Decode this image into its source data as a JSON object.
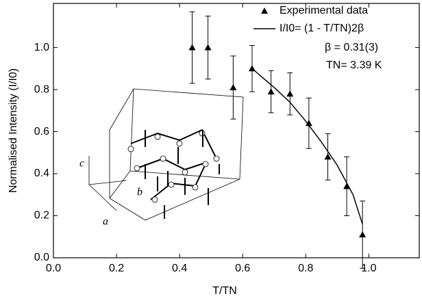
{
  "chart_data": {
    "type": "scatter",
    "xlabel": "T/TN",
    "ylabel": "Normalised Intensity (I/I0)",
    "xlim": [
      0,
      1.16
    ],
    "ylim": [
      0,
      1.21
    ],
    "xticks": [
      {
        "value": 0,
        "label": "0.0"
      },
      {
        "value": 0.2,
        "label": "0.2"
      },
      {
        "value": 0.4,
        "label": "0.4"
      },
      {
        "value": 0.6,
        "label": "0.6"
      },
      {
        "value": 0.8,
        "label": "0.8"
      },
      {
        "value": 1.0,
        "label": "1.0"
      }
    ],
    "yticks": [
      {
        "value": 0,
        "label": "0.0"
      },
      {
        "value": 0.2,
        "label": "0.2"
      },
      {
        "value": 0.4,
        "label": "0.4"
      },
      {
        "value": 0.6,
        "label": "0.6"
      },
      {
        "value": 0.8,
        "label": "0.8"
      },
      {
        "value": 1.0,
        "label": "1.0"
      }
    ],
    "grid": false,
    "legend": "upper right",
    "series": [
      {
        "name": "Experimental data",
        "color": "#000000",
        "marker": "triangle",
        "x": [
          0.44,
          0.49,
          0.57,
          0.63,
          0.69,
          0.75,
          0.81,
          0.87,
          0.93,
          0.98
        ],
        "values": [
          1.0,
          1.0,
          0.81,
          0.9,
          0.79,
          0.78,
          0.64,
          0.48,
          0.34,
          0.11
        ],
        "errors": [
          0.17,
          0.15,
          0.15,
          0.11,
          0.1,
          0.1,
          0.12,
          0.11,
          0.14,
          0.16
        ]
      },
      {
        "name": "I/I0= (1 - T/TN)2β",
        "color": "#000000",
        "marker": "line",
        "x": [
          0.63,
          0.7,
          0.75,
          0.8,
          0.85,
          0.9,
          0.95,
          0.98
        ],
        "values": [
          0.9,
          0.81,
          0.74,
          0.65,
          0.55,
          0.44,
          0.3,
          0.16
        ]
      }
    ],
    "annotations": [
      "β = 0.31(3)",
      "TN= 3.39 K"
    ],
    "inset_axis_labels": [
      "a",
      "b",
      "c"
    ]
  }
}
